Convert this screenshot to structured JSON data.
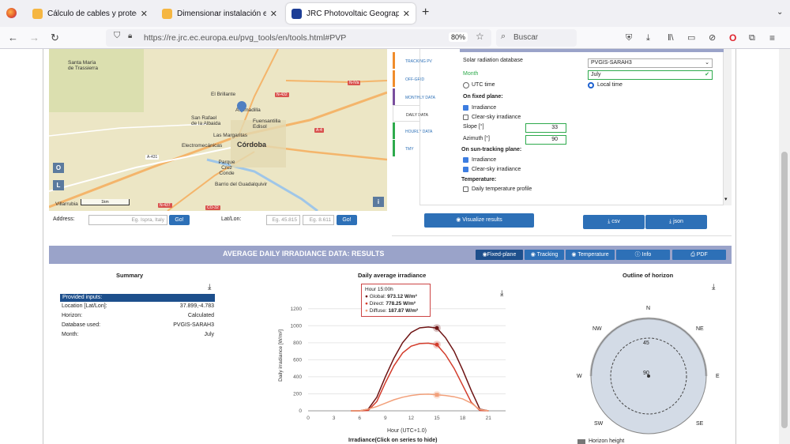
{
  "browser": {
    "tabs": [
      {
        "title": "Cálculo de cables y proteccione"
      },
      {
        "title": "Dimensionar instalación este o"
      },
      {
        "title": "JRC Photovoltaic Geographical I"
      }
    ],
    "url": "https://re.jrc.ec.europa.eu/pvg_tools/en/tools.html#PVP",
    "zoom": "80%",
    "search_placeholder": "Buscar",
    "new_tab": "+",
    "close": "✕"
  },
  "map": {
    "places": [
      "Santa María de Trassierra",
      "El Brillante",
      "Asomadilla",
      "San Rafael de la Albaida",
      "Fuensantilla Edisol",
      "Las Margaritas",
      "Electromecánicas",
      "Córdoba",
      "Parque Cruz Conde",
      "Barrio del Guadalquivir",
      "Villarrubia"
    ],
    "roads": [
      "N-IVa",
      "N-432",
      "A-4",
      "A-431",
      "N-437",
      "CO-32",
      "A-4"
    ],
    "scale": "1km",
    "btn_o": "O",
    "btn_l": "L",
    "info": "i",
    "address_label": "Address:",
    "address_placeholder": "Eg. Ispra, Italy",
    "go": "Go!",
    "latlon_label": "Lat/Lon:",
    "lat_placeholder": "Eg. 45.815",
    "lon_placeholder": "Eg. 8.611"
  },
  "sidetabs": [
    "TRACKING PV",
    "OFF-GRID",
    "MONTHLY DATA",
    "DAILY DATA",
    "HOURLY DATA",
    "TMY"
  ],
  "form": {
    "db_label": "Solar radiation database",
    "db_value": "PVGIS-SARAH3",
    "month_label": "Month",
    "month_value": "July",
    "utc": "UTC time",
    "local": "Local time",
    "fixed_title": "On fixed plane:",
    "irr": "Irradiance",
    "clear": "Clear-sky irradiance",
    "slope_label": "Slope [°]",
    "slope_value": "33",
    "azimuth_label": "Azimuth [°]",
    "azimuth_value": "90",
    "track_title": "On sun-tracking plane:",
    "irr2": "Irradiance",
    "clear2": "Clear-sky irradiance",
    "temp_title": "Temperature:",
    "temp": "Daily temperature profile",
    "visualize": "Visualize results",
    "csv": "csv",
    "json": "json"
  },
  "results": {
    "title": "AVERAGE DAILY IRRADIANCE DATA: RESULTS",
    "btns": [
      "Fixed-plane",
      "Tracking",
      "Temperature",
      "Info",
      "PDF"
    ]
  },
  "summary": {
    "title": "Summary",
    "header": "Provided inputs:",
    "rows": [
      {
        "k": "Location [Lat/Lon]:",
        "v": "37.899,-4.783"
      },
      {
        "k": "Horizon:",
        "v": "Calculated"
      },
      {
        "k": "Database used:",
        "v": "PVGIS-SARAH3"
      },
      {
        "k": "Month:",
        "v": "July"
      }
    ]
  },
  "chart_data": {
    "type": "line",
    "title": "Daily average irradiance",
    "xlabel": "Hour (UTC+1.0)",
    "ylabel": "Daily irradiance [W/m²]",
    "xlim": [
      0,
      23
    ],
    "ylim": [
      0,
      1300
    ],
    "xticks": [
      0,
      3,
      6,
      9,
      12,
      15,
      18,
      21
    ],
    "yticks": [
      0,
      200,
      400,
      600,
      800,
      1000,
      1200
    ],
    "x": [
      5,
      6,
      7,
      8,
      9,
      10,
      11,
      12,
      13,
      14,
      15,
      16,
      17,
      18,
      19,
      20,
      21
    ],
    "series": [
      {
        "name": "Global",
        "color": "#6e1414",
        "values": [
          0,
          0,
          20,
          160,
          400,
          620,
          800,
          920,
          975,
          985,
          973,
          860,
          700,
          480,
          240,
          20,
          0
        ]
      },
      {
        "name": "Direct",
        "color": "#d33c2b",
        "values": [
          0,
          0,
          5,
          110,
          330,
          530,
          680,
          760,
          790,
          795,
          778,
          660,
          500,
          300,
          100,
          5,
          0
        ]
      },
      {
        "name": "Diffuse",
        "color": "#f2a07a",
        "values": [
          0,
          0,
          20,
          50,
          90,
          130,
          160,
          180,
          192,
          196,
          188,
          180,
          165,
          140,
          90,
          15,
          0
        ]
      }
    ],
    "tooltip": {
      "hour": "Hour 15:00h",
      "global_label": "Global:",
      "global": "973.12 W/m²",
      "direct_label": "Direct:",
      "direct": "778.25 W/m²",
      "diffuse_label": "Diffuse:",
      "diffuse": "187.87 W/m²"
    },
    "legend_title": "Irradiance(Click on series to hide)"
  },
  "horizon": {
    "title": "Outline of horizon",
    "dirs": {
      "n": "N",
      "ne": "NE",
      "e": "E",
      "se": "SE",
      "s": "S",
      "sw": "SW",
      "w": "W",
      "nw": "NW"
    },
    "rings": [
      "45",
      "90"
    ],
    "legend": "Horizon height"
  }
}
